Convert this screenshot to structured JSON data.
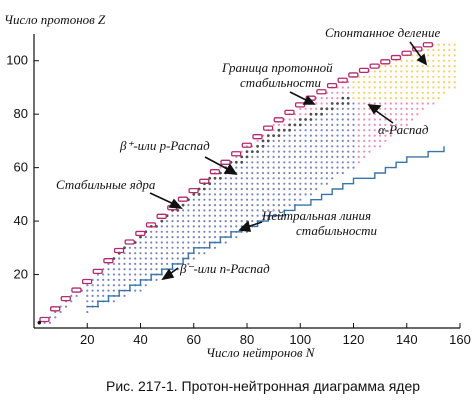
{
  "colors": {
    "boundary": "#b22a6f",
    "stable_nuclei": "#111111",
    "beta_plus_region": "#e46b9a",
    "beta_minus_region": "#4d5fa8",
    "alpha_region": "#f2c230",
    "stability_line": "#3a73a8",
    "axis": "#111111"
  },
  "chart_data": {
    "type": "scatter",
    "xlabel": "Число нейтронов N",
    "ylabel": "Число протонов Z",
    "xlim": [
      0,
      160
    ],
    "ylim": [
      0,
      110
    ],
    "xticks": [
      "20",
      "40",
      "60",
      "80",
      "100",
      "120",
      "140",
      "160"
    ],
    "yticks": [
      "20",
      "40",
      "60",
      "80",
      "100"
    ],
    "grid": false,
    "legend": "none",
    "caption": "Рис. 217-1. Протон-нейтронная диаграмма ядер",
    "annotations": {
      "proton_boundary": [
        "Граница протонной",
        "стабильности"
      ],
      "spontaneous_fission": "Спонтанное деление",
      "beta_plus": "β⁺-или p-Распад",
      "alpha": "α-Распад",
      "stable": "Стабильные ядра",
      "neutral_line": [
        "Нейтральная линия",
        "стабильности"
      ],
      "beta_minus": "β⁻-или n-Распад"
    },
    "series": [
      {
        "role": "proton stability boundary",
        "points": [
          [
            3,
            3
          ],
          [
            10,
            10
          ],
          [
            20,
            18
          ],
          [
            30,
            28
          ],
          [
            40,
            36
          ],
          [
            50,
            44
          ],
          [
            60,
            52
          ],
          [
            70,
            61
          ],
          [
            80,
            69
          ],
          [
            90,
            77
          ],
          [
            100,
            84
          ],
          [
            110,
            90
          ],
          [
            120,
            95
          ],
          [
            130,
            99
          ],
          [
            140,
            103
          ],
          [
            150,
            107
          ]
        ]
      },
      {
        "role": "stable nuclei",
        "points": [
          [
            2,
            2
          ],
          [
            8,
            8
          ],
          [
            14,
            14
          ],
          [
            20,
            20
          ],
          [
            28,
            26
          ],
          [
            36,
            32
          ],
          [
            44,
            38
          ],
          [
            52,
            44
          ],
          [
            60,
            50
          ],
          [
            68,
            56
          ],
          [
            76,
            62
          ],
          [
            82,
            66
          ],
          [
            90,
            72
          ],
          [
            98,
            76
          ],
          [
            106,
            80
          ],
          [
            114,
            84
          ],
          [
            120,
            86
          ]
        ]
      },
      {
        "role": "neutral stability line",
        "points": [
          [
            20,
            8
          ],
          [
            30,
            12
          ],
          [
            40,
            18
          ],
          [
            50,
            22
          ],
          [
            60,
            29
          ],
          [
            70,
            33
          ],
          [
            80,
            38
          ],
          [
            90,
            42
          ],
          [
            100,
            46
          ],
          [
            110,
            50
          ],
          [
            120,
            55
          ],
          [
            130,
            58
          ],
          [
            140,
            63
          ],
          [
            150,
            66
          ],
          [
            155,
            68
          ]
        ]
      },
      {
        "role": "neutron-rich edge",
        "points": [
          [
            20,
            6
          ],
          [
            40,
            14
          ],
          [
            60,
            25
          ],
          [
            80,
            36
          ],
          [
            100,
            47
          ],
          [
            120,
            60
          ],
          [
            140,
            76
          ],
          [
            158,
            90
          ]
        ]
      }
    ]
  }
}
